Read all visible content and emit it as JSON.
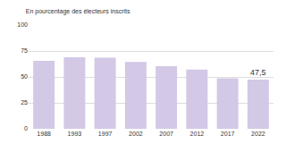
{
  "chart_data": {
    "type": "bar",
    "subtitle": "En pourcentage des électeurs inscrits",
    "categories": [
      "1988",
      "1993",
      "1997",
      "2002",
      "2007",
      "2012",
      "2017",
      "2022"
    ],
    "values": [
      65.5,
      68.9,
      68.5,
      64.4,
      60.4,
      57.2,
      48.7,
      47.5
    ],
    "value_labels": [
      null,
      null,
      null,
      null,
      null,
      null,
      null,
      "47,5"
    ],
    "color": "#d3c8e6",
    "ylim": [
      0,
      100
    ],
    "yticks": [
      0,
      25,
      50,
      75,
      100
    ],
    "grid": true
  }
}
